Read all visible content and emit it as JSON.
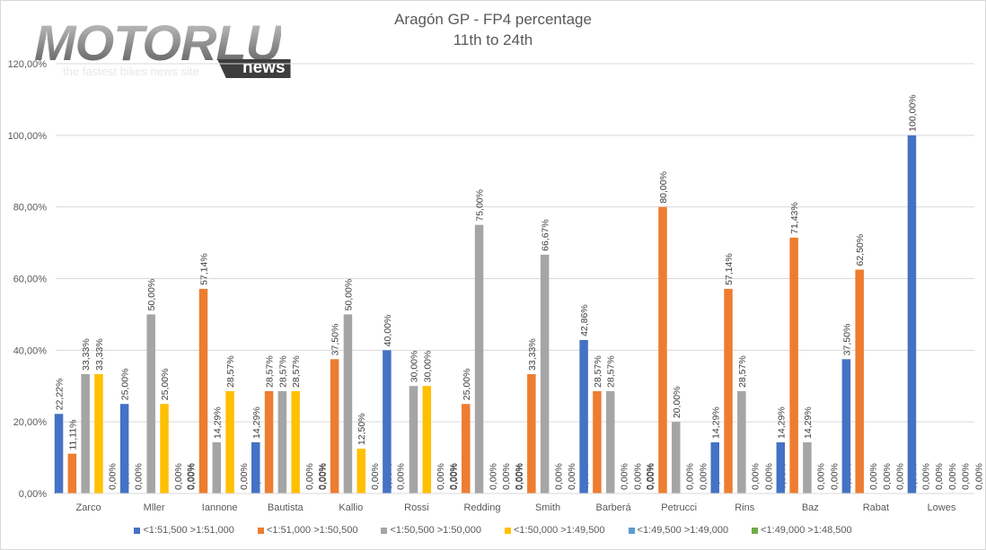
{
  "logo": {
    "main": "MOTORLU",
    "badge": "news",
    "tagline": "the fastest bikes news site"
  },
  "chart_data": {
    "type": "bar",
    "title": "Aragón GP - FP4 percentage",
    "subtitle": "11th to 24th",
    "xlabel": "",
    "ylabel": "",
    "ylim": [
      0,
      120
    ],
    "yticks": [
      "0,00%",
      "20,00%",
      "40,00%",
      "60,00%",
      "80,00%",
      "100,00%",
      "120,00%"
    ],
    "ytick_values": [
      0,
      20,
      40,
      60,
      80,
      100,
      120
    ],
    "grid": true,
    "legend_position": "bottom",
    "categories": [
      "Zarco",
      "Mller",
      "Iannone",
      "Bautista",
      "Kallio",
      "Rossi",
      "Redding",
      "Smith",
      "Barberá",
      "Petrucci",
      "Rins",
      "Baz",
      "Rabat",
      "Lowes"
    ],
    "series": [
      {
        "name": "<1:51,500 >1:51,000",
        "color": "#4472c4",
        "values": [
          22.22,
          25.0,
          0,
          14.29,
          0,
          40.0,
          0,
          0,
          42.86,
          0,
          14.29,
          14.29,
          37.5,
          100.0
        ]
      },
      {
        "name": "<1:51,000 >1:50,500",
        "color": "#ed7d31",
        "values": [
          11.11,
          0,
          57.14,
          28.57,
          37.5,
          0,
          25.0,
          33.33,
          28.57,
          80.0,
          57.14,
          71.43,
          62.5,
          0
        ]
      },
      {
        "name": "<1:50,500 >1:50,000",
        "color": "#a5a5a5",
        "values": [
          33.33,
          50.0,
          14.29,
          28.57,
          50.0,
          30.0,
          75.0,
          66.67,
          28.57,
          20.0,
          28.57,
          14.29,
          0,
          0
        ]
      },
      {
        "name": "<1:50,000 >1:49,500",
        "color": "#ffc000",
        "values": [
          33.33,
          25.0,
          28.57,
          28.57,
          12.5,
          30.0,
          0,
          0,
          0,
          0,
          0,
          0,
          0,
          0
        ]
      },
      {
        "name": "<1:49,500 >1:49,000",
        "color": "#5b9bd5",
        "values": [
          0,
          0,
          0,
          0,
          0,
          0,
          0,
          0,
          0,
          0,
          0,
          0,
          0,
          0
        ]
      },
      {
        "name": "<1:49,000 >1:48,500",
        "color": "#70ad47",
        "values": [
          0,
          0,
          0,
          0,
          0,
          0,
          0,
          0,
          0,
          0,
          0,
          0,
          0,
          0
        ]
      }
    ],
    "label_display": {
      "Zarco": [
        true,
        true,
        true,
        true,
        true,
        true
      ],
      "Mller": [
        true,
        true,
        true,
        true,
        true,
        true
      ],
      "Iannone": [
        true,
        true,
        true,
        true,
        true,
        true
      ],
      "Bautista": [
        true,
        true,
        true,
        true,
        true,
        true
      ],
      "Kallio": [
        true,
        true,
        true,
        true,
        true,
        true
      ],
      "Rossi": [
        true,
        true,
        true,
        true,
        true,
        true
      ],
      "Redding": [
        true,
        true,
        true,
        true,
        true,
        true
      ],
      "Smith": [
        true,
        true,
        true,
        true,
        true,
        true
      ],
      "Barberá": [
        true,
        true,
        true,
        true,
        true,
        true
      ],
      "Petrucci": [
        true,
        true,
        true,
        true,
        true,
        true
      ],
      "Rins": [
        true,
        true,
        true,
        true,
        true,
        true
      ],
      "Baz": [
        true,
        true,
        true,
        true,
        true,
        true
      ],
      "Rabat": [
        true,
        true,
        true,
        true,
        true,
        true
      ],
      "Lowes": [
        true,
        true,
        true,
        true,
        true,
        true
      ]
    }
  }
}
